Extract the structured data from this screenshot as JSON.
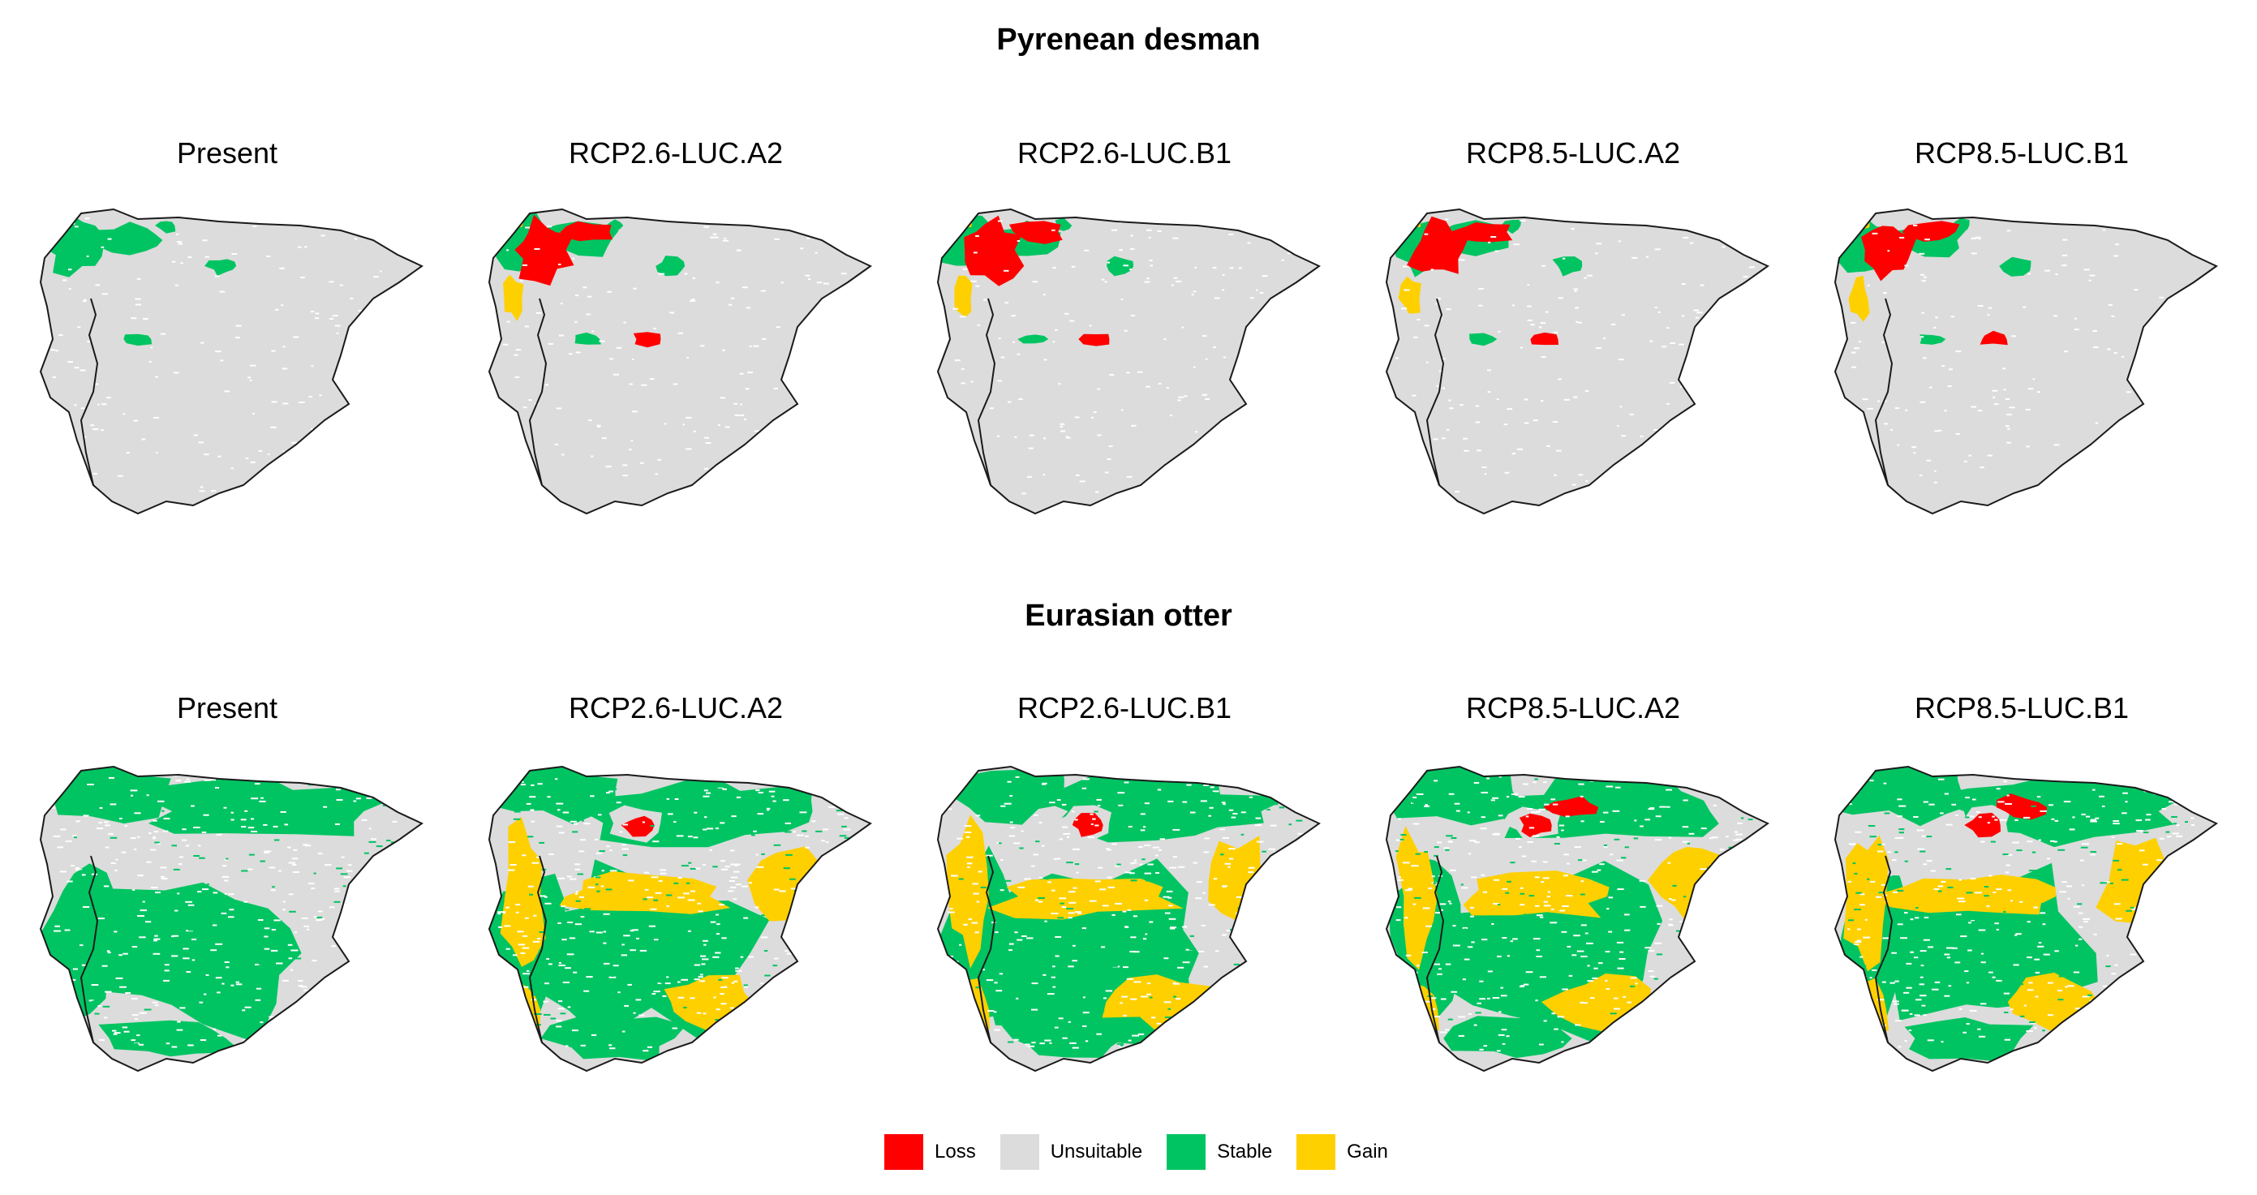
{
  "species": [
    {
      "title": "Pyrenean desman",
      "panels": [
        "Present",
        "RCP2.6-LUC.A2",
        "RCP2.6-LUC.B1",
        "RCP8.5-LUC.A2",
        "RCP8.5-LUC.B1"
      ]
    },
    {
      "title": "Eurasian otter",
      "panels": [
        "Present",
        "RCP2.6-LUC.A2",
        "RCP2.6-LUC.B1",
        "RCP8.5-LUC.A2",
        "RCP8.5-LUC.B1"
      ]
    }
  ],
  "legend": [
    {
      "label": "Loss",
      "color": "#ff0000"
    },
    {
      "label": "Unsuitable",
      "color": "#dcdcdc"
    },
    {
      "label": "Stable",
      "color": "#00c462"
    },
    {
      "label": "Gain",
      "color": "#ffd000"
    }
  ]
}
